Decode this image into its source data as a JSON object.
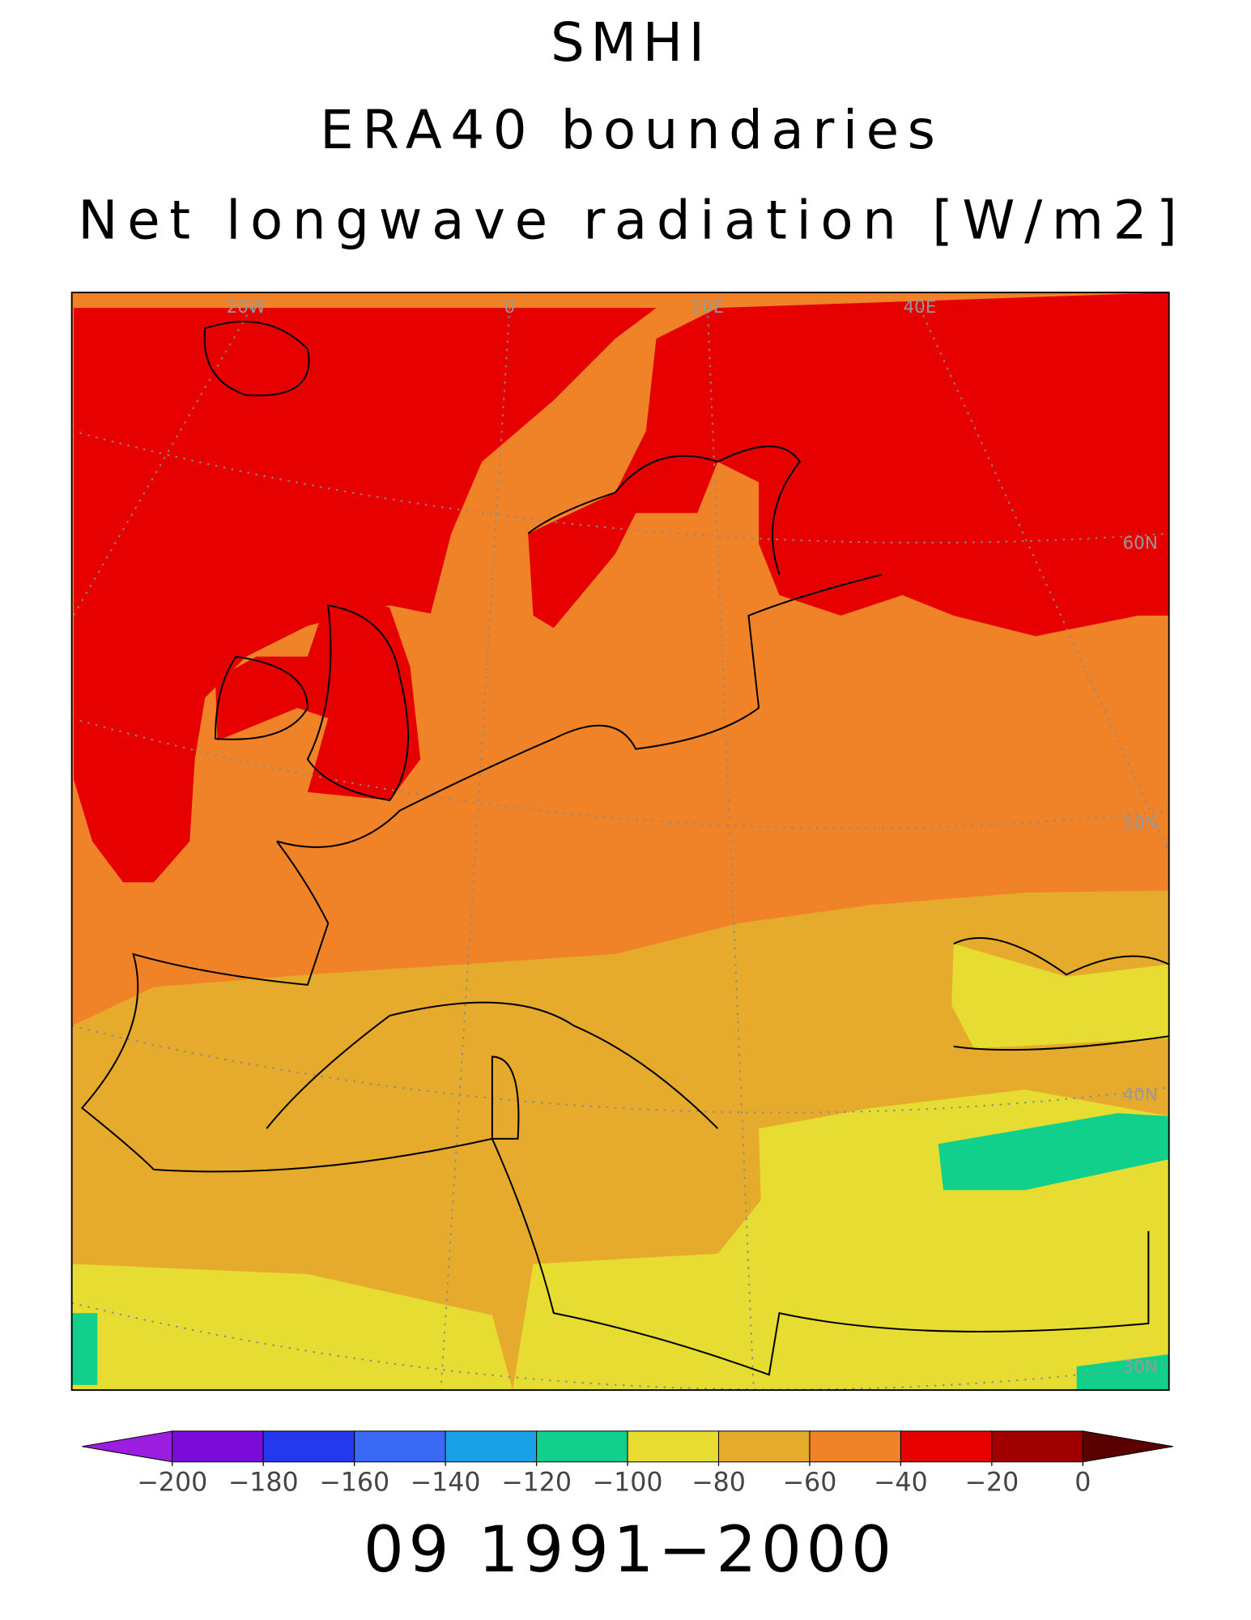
{
  "header": {
    "lines": [
      "SMHI",
      "ERA40 boundaries",
      "Net longwave radiation [W/m2]"
    ]
  },
  "map": {
    "graticule_labels": [
      "20W",
      "0",
      "20E",
      "40E",
      "60N",
      "50N",
      "40N",
      "30N"
    ]
  },
  "colorbar": {
    "ticks": [
      {
        "value": -200,
        "label": "−200"
      },
      {
        "value": -180,
        "label": "−180"
      },
      {
        "value": -160,
        "label": "−160"
      },
      {
        "value": -140,
        "label": "−140"
      },
      {
        "value": -120,
        "label": "−120"
      },
      {
        "value": -100,
        "label": "−100"
      },
      {
        "value": -80,
        "label": "−80"
      },
      {
        "value": -60,
        "label": "−60"
      },
      {
        "value": -40,
        "label": "−40"
      },
      {
        "value": -20,
        "label": "−20"
      },
      0
    ],
    "colors": [
      "#9b1ee0",
      "#7a0bd9",
      "#2438ee",
      "#3a6af5",
      "#1aa0e6",
      "#10d08c",
      "#e6dc32",
      "#e6aa2d",
      "#f08228",
      "#e60000",
      "#a00000",
      "#5a0000"
    ]
  },
  "footer": {
    "period": "09 1991−2000"
  }
}
